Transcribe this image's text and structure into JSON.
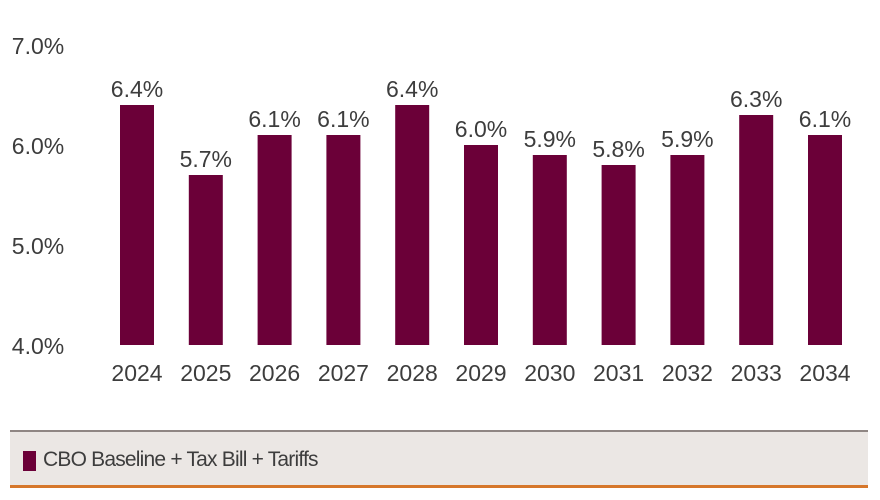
{
  "chart_data": {
    "type": "bar",
    "title": "",
    "xlabel": "",
    "ylabel": "",
    "categories": [
      "2024",
      "2025",
      "2026",
      "2027",
      "2028",
      "2029",
      "2030",
      "2031",
      "2032",
      "2033",
      "2034"
    ],
    "series": [
      {
        "name": "CBO Baseline + Tax Bill + Tariffs",
        "values": [
          6.4,
          5.7,
          6.1,
          6.1,
          6.4,
          6.0,
          5.9,
          5.8,
          5.9,
          6.3,
          6.1
        ],
        "color": "#6b0038"
      }
    ],
    "data_labels": [
      "6.4%",
      "5.7%",
      "6.1%",
      "6.1%",
      "6.4%",
      "6.0%",
      "5.9%",
      "5.8%",
      "5.9%",
      "6.3%",
      "6.1%"
    ],
    "ylim": [
      4.0,
      7.0
    ],
    "yticks": [
      4.0,
      5.0,
      6.0,
      7.0
    ],
    "ytick_labels": [
      "4.0%",
      "5.0%",
      "6.0%",
      "7.0%"
    ],
    "grid": false,
    "legend_position": "bottom"
  },
  "legend": {
    "label": "CBO Baseline + Tax Bill + Tariffs",
    "colors": {
      "bar": "#6b0038",
      "accent": "#d6772b",
      "legend_bg": "#ebe7e4"
    }
  }
}
